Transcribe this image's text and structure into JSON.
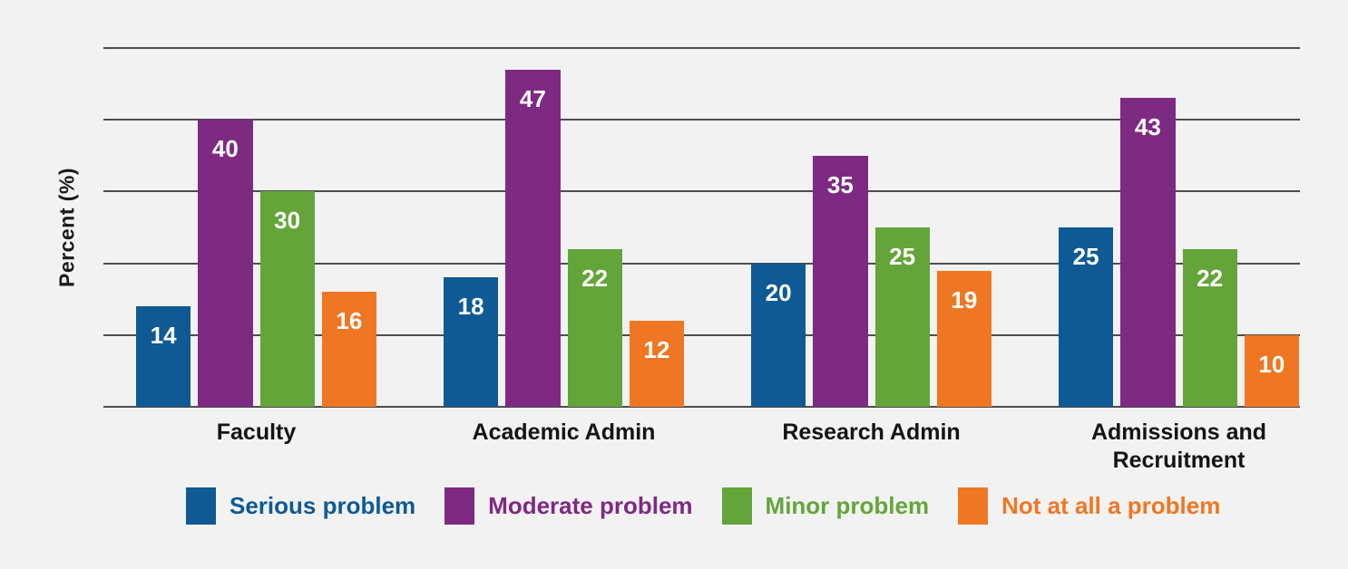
{
  "page": {
    "background_color": "#f2f2f2",
    "gridline_color": "#4d4d4d"
  },
  "chart_data": {
    "type": "bar",
    "title": "",
    "xlabel": "",
    "ylabel": "Percent (%)",
    "ylim": [
      0,
      50
    ],
    "grid_step": 10,
    "grid": true,
    "y_tick_labels_visible": false,
    "bar_value_labels_visible": true,
    "legend_position": "bottom",
    "categories": [
      "Faculty",
      "Academic Admin",
      "Research Admin",
      "Admissions and Recruitment"
    ],
    "series": [
      {
        "name": "Serious problem",
        "color": "#0f5a94",
        "values": [
          14,
          18,
          20,
          25
        ]
      },
      {
        "name": "Moderate problem",
        "color": "#7e2a83",
        "values": [
          40,
          47,
          35,
          43
        ]
      },
      {
        "name": "Minor problem",
        "color": "#64a53a",
        "values": [
          30,
          22,
          25,
          22
        ]
      },
      {
        "name": "Not at all a problem",
        "color": "#ef7723",
        "values": [
          16,
          12,
          19,
          10
        ]
      }
    ]
  }
}
